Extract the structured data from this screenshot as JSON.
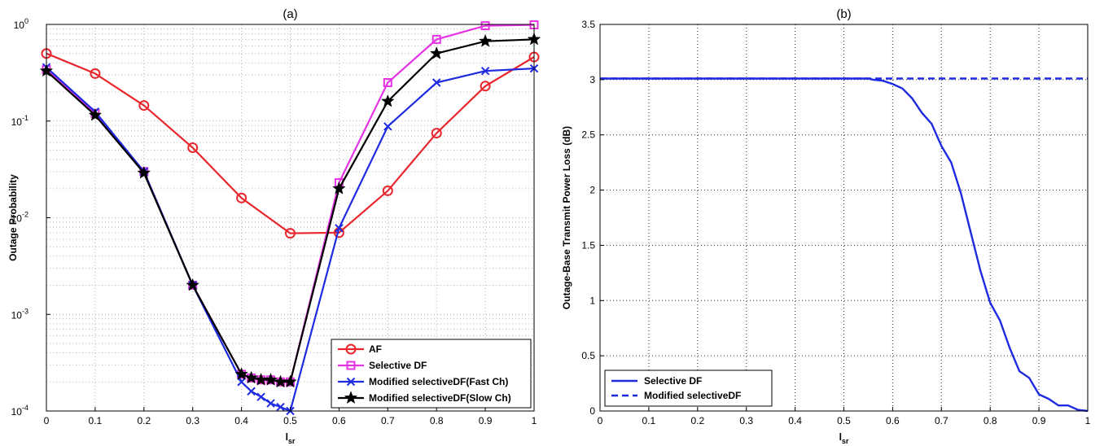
{
  "chart_data": [
    {
      "type": "line",
      "title": "(a)",
      "xlabel": "l",
      "xlabel_sub": "sr",
      "ylabel": "Outage Probability",
      "yscale": "log",
      "xlim": [
        0,
        1
      ],
      "ylim": [
        0.0001,
        1
      ],
      "grid": true,
      "legend_position": "bottom-right",
      "x_ticks": [
        "0",
        "0.1",
        "0.2",
        "0.3",
        "0.4",
        "0.5",
        "0.6",
        "0.7",
        "0.8",
        "0.9",
        "1"
      ],
      "y_ticks": [
        {
          "base": "10",
          "exp": "-4"
        },
        {
          "base": "10",
          "exp": "-3"
        },
        {
          "base": "10",
          "exp": "-2"
        },
        {
          "base": "10",
          "exp": "-1"
        },
        {
          "base": "10",
          "exp": "0"
        }
      ],
      "series": [
        {
          "name": "AF",
          "color": "#e8262d",
          "marker": "circle",
          "x": [
            0,
            0.1,
            0.2,
            0.3,
            0.4,
            0.5,
            0.6,
            0.7,
            0.8,
            0.9,
            1.0
          ],
          "y": [
            0.5,
            0.31,
            0.145,
            0.053,
            0.016,
            0.0069,
            0.007,
            0.019,
            0.075,
            0.23,
            0.46
          ]
        },
        {
          "name": "Selective DF",
          "color": "#e534e5",
          "marker": "square",
          "x": [
            0,
            0.1,
            0.2,
            0.3,
            0.4,
            0.42,
            0.44,
            0.46,
            0.48,
            0.5,
            0.6,
            0.7,
            0.8,
            0.9,
            1.0
          ],
          "y": [
            0.34,
            0.12,
            0.03,
            0.002,
            0.00024,
            0.00022,
            0.00021,
            0.00021,
            0.0002,
            0.0002,
            0.023,
            0.25,
            0.7,
            0.97,
            0.99
          ]
        },
        {
          "name": "Modified selectiveDF(Fast Ch)",
          "color": "#1e2be0",
          "marker": "x",
          "x": [
            0,
            0.1,
            0.2,
            0.3,
            0.4,
            0.42,
            0.44,
            0.46,
            0.48,
            0.5,
            0.6,
            0.7,
            0.8,
            0.9,
            1.0
          ],
          "y": [
            0.36,
            0.125,
            0.03,
            0.002,
            0.0002,
            0.00016,
            0.00014,
            0.00012,
            0.00011,
            0.0001,
            0.0078,
            0.088,
            0.25,
            0.33,
            0.35
          ]
        },
        {
          "name": "Modified selectiveDF(Slow Ch)",
          "color": "#000000",
          "marker": "star",
          "x": [
            0,
            0.1,
            0.2,
            0.3,
            0.4,
            0.42,
            0.44,
            0.46,
            0.48,
            0.5,
            0.6,
            0.7,
            0.8,
            0.9,
            1.0
          ],
          "y": [
            0.33,
            0.115,
            0.029,
            0.002,
            0.00024,
            0.00022,
            0.00021,
            0.00021,
            0.0002,
            0.0002,
            0.02,
            0.16,
            0.5,
            0.67,
            0.7
          ]
        }
      ]
    },
    {
      "type": "line",
      "title": "(b)",
      "xlabel": "l",
      "xlabel_sub": "sr",
      "ylabel": "Outage-Base Transmit Power Loss (dB)",
      "xlim": [
        0,
        1
      ],
      "ylim": [
        0,
        3.5
      ],
      "grid": true,
      "legend_position": "bottom-left",
      "x_ticks": [
        "0",
        "0.1",
        "0.2",
        "0.3",
        "0.4",
        "0.5",
        "0.6",
        "0.7",
        "0.8",
        "0.9",
        "1"
      ],
      "y_ticks": [
        "0",
        "0.5",
        "1",
        "1.5",
        "2",
        "2.5",
        "3",
        "3.5"
      ],
      "series": [
        {
          "name": "Selective DF",
          "color": "#1e2be0",
          "dash": "solid",
          "x": [
            0,
            0.55,
            0.56,
            0.58,
            0.6,
            0.62,
            0.64,
            0.66,
            0.68,
            0.7,
            0.72,
            0.74,
            0.76,
            0.78,
            0.8,
            0.82,
            0.84,
            0.86,
            0.88,
            0.9,
            0.92,
            0.94,
            0.96,
            0.98,
            1.0
          ],
          "y": [
            3.01,
            3.01,
            3.0,
            2.99,
            2.96,
            2.92,
            2.83,
            2.7,
            2.6,
            2.4,
            2.25,
            1.97,
            1.62,
            1.27,
            0.98,
            0.82,
            0.57,
            0.36,
            0.3,
            0.15,
            0.11,
            0.05,
            0.05,
            0.01,
            0.0
          ]
        },
        {
          "name": "Modified selectiveDF",
          "color": "#1e2be0",
          "dash": "dashed",
          "x": [
            0,
            1.0
          ],
          "y": [
            3.01,
            3.01
          ]
        }
      ]
    }
  ]
}
